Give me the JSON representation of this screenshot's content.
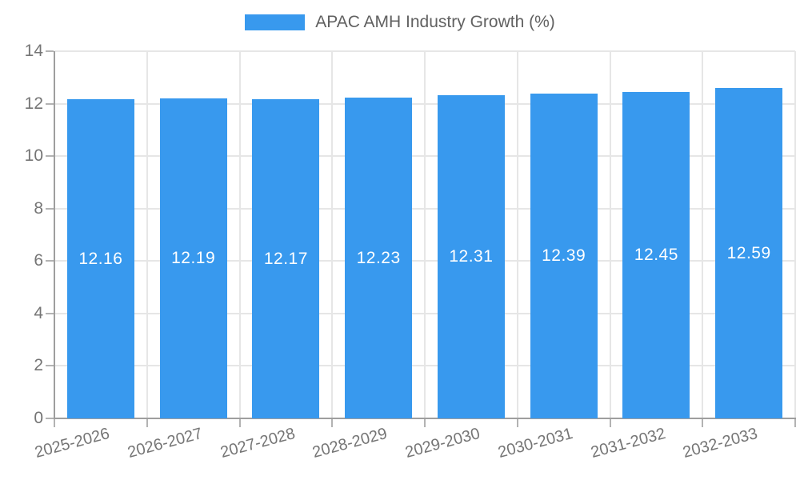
{
  "legend": {
    "label": "APAC AMH Industry Growth (%)"
  },
  "chart_data": {
    "type": "bar",
    "title": "",
    "series_name": "APAC AMH Industry Growth (%)",
    "categories": [
      "2025-2026",
      "2026-2027",
      "2027-2028",
      "2028-2029",
      "2029-2030",
      "2030-2031",
      "2031-2032",
      "2032-2033"
    ],
    "values": [
      12.16,
      12.19,
      12.17,
      12.23,
      12.31,
      12.39,
      12.45,
      12.59
    ],
    "value_labels": [
      "12.16",
      "12.19",
      "12.17",
      "12.23",
      "12.31",
      "12.39",
      "12.45",
      "12.59"
    ],
    "xlabel": "",
    "ylabel": "",
    "ylim": [
      0,
      14
    ],
    "yticks": [
      0,
      2,
      4,
      6,
      8,
      10,
      12,
      14
    ],
    "grid": true,
    "legend_position": "top-center",
    "value_label_position": "center-inside",
    "xtick_rotation_deg": -15
  },
  "colors": {
    "bar": "#3899ee",
    "gridline": "#e6e6e6",
    "axis_line": "#9e9e9e",
    "tick_mark": "#b3b3b3",
    "tick_label": "#757575",
    "legend_text": "#616161",
    "value_label": "#ffffff",
    "background": "#ffffff"
  }
}
